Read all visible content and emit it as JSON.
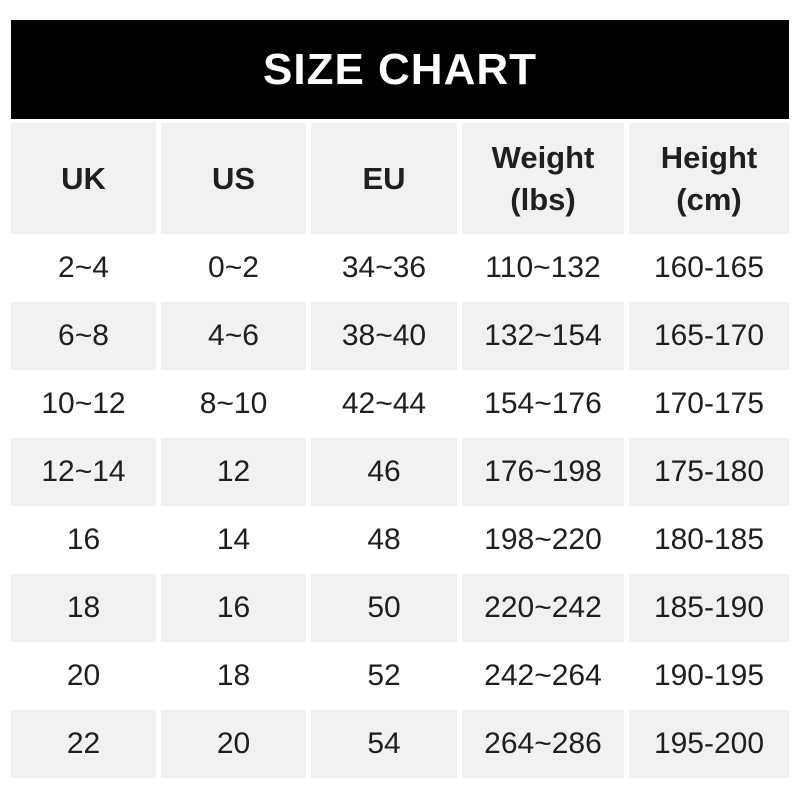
{
  "banner": {
    "title": "SIZE CHART"
  },
  "colors": {
    "banner_bg": "#000000",
    "banner_text": "#ffffff",
    "alt_row_bg": "#f2f1f1",
    "row_bg": "#ffffff",
    "text": "#1f1f1f"
  },
  "header": {
    "uk": "UK",
    "us": "US",
    "eu": "EU",
    "weight_label": "Weight",
    "weight_unit": "(lbs)",
    "height_label": "Height",
    "height_unit": "(cm)"
  },
  "chart_data": {
    "type": "table",
    "title": "SIZE CHART",
    "columns": [
      "UK",
      "US",
      "EU",
      "Weight (lbs)",
      "Height (cm)"
    ],
    "rows": [
      [
        "2~4",
        "0~2",
        "34~36",
        "110~132",
        "160-165"
      ],
      [
        "6~8",
        "4~6",
        "38~40",
        "132~154",
        "165-170"
      ],
      [
        "10~12",
        "8~10",
        "42~44",
        "154~176",
        "170-175"
      ],
      [
        "12~14",
        "12",
        "46",
        "176~198",
        "175-180"
      ],
      [
        "16",
        "14",
        "48",
        "198~220",
        "180-185"
      ],
      [
        "18",
        "16",
        "50",
        "220~242",
        "185-190"
      ],
      [
        "20",
        "18",
        "52",
        "242~264",
        "190-195"
      ],
      [
        "22",
        "20",
        "54",
        "264~286",
        "195-200"
      ]
    ]
  }
}
